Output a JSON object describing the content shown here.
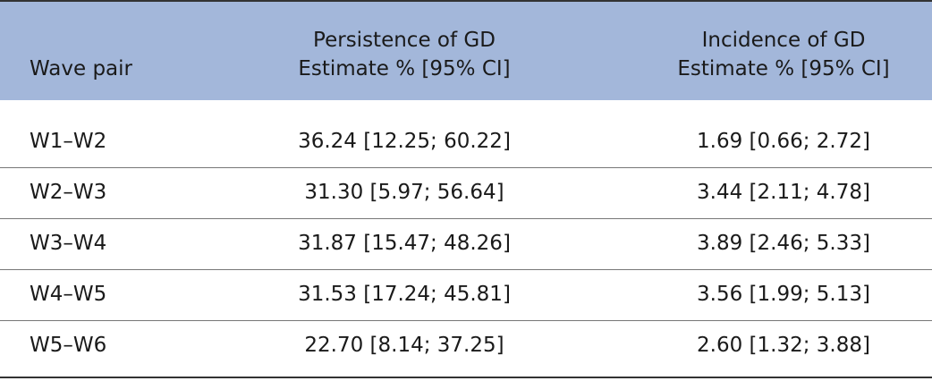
{
  "table": {
    "header": [
      [
        "Wave pair"
      ],
      [
        "Persistence of GD",
        "Estimate % [95% CI]"
      ],
      [
        "Incidence of GD",
        "Estimate % [95% CI]"
      ]
    ],
    "rows": [
      [
        "W1–W2",
        "36.24 [12.25; 60.22]",
        "1.69 [0.66; 2.72]"
      ],
      [
        "W2–W3",
        "31.30 [5.97; 56.64]",
        "3.44 [2.11; 4.78]"
      ],
      [
        "W3–W4",
        "31.87 [15.47; 48.26]",
        "3.89 [2.46; 5.33]"
      ],
      [
        "W4–W5",
        "31.53 [17.24; 45.81]",
        "3.56 [1.99; 5.13]"
      ],
      [
        "W5–W6",
        "22.70 [8.14; 37.25]",
        "2.60 [1.32; 3.88]"
      ]
    ]
  }
}
